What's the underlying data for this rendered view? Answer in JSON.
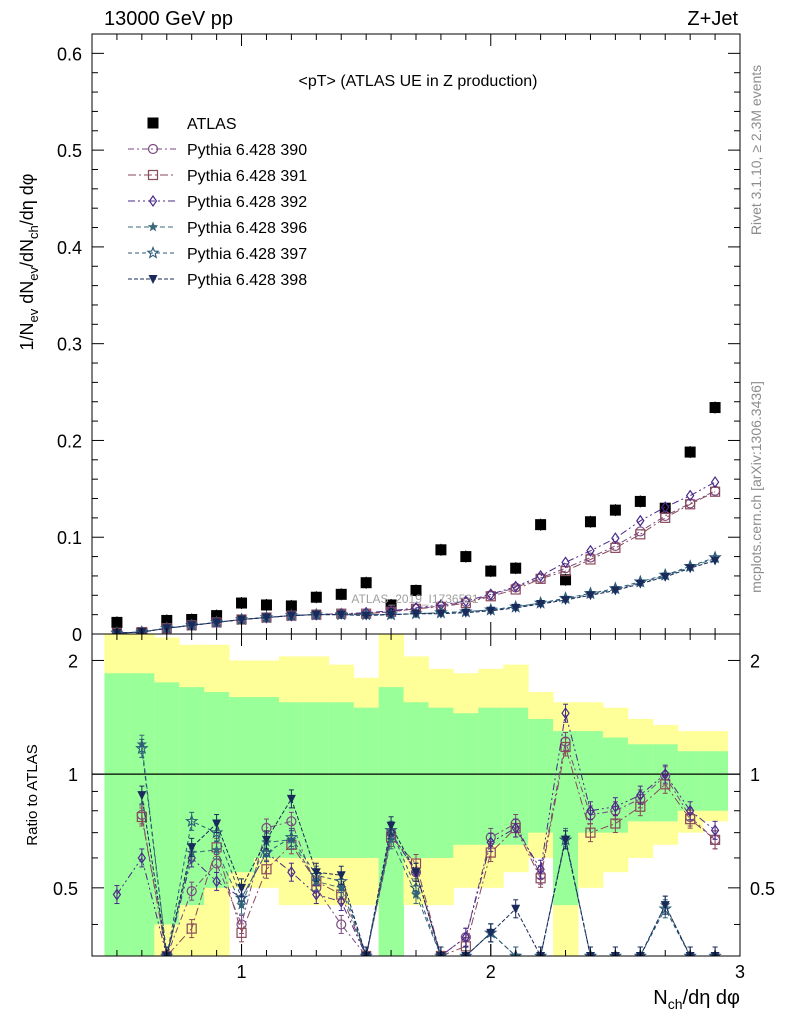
{
  "header": {
    "left": "13000 GeV pp",
    "right": "Z+Jet"
  },
  "side_text": {
    "rivet": "Rivet 3.1.10, ≥ 2.3M events",
    "mcplots": "mcplots.cern.ch [arXiv:1306.3436]"
  },
  "watermark": "ATLAS_2019_I1736531",
  "chart_data": [
    {
      "type": "scatter",
      "title": "<pT> (ATLAS UE in Z production)",
      "xlabel": "N_ch/dη dφ",
      "ylabel": "1/N_ev dN_ev/dN_ch/dη dφ",
      "xlim": [
        0.4,
        3.0
      ],
      "ylim": [
        0,
        0.62
      ],
      "y_ticks": [
        "0",
        "0.1",
        "0.2",
        "0.3",
        "0.4",
        "0.5",
        "0.6"
      ],
      "x_ticks": [
        "1",
        "2",
        "3"
      ],
      "legend_position": "top-left",
      "x": [
        0.5,
        0.6,
        0.7,
        0.8,
        0.9,
        1.0,
        1.1,
        1.2,
        1.3,
        1.4,
        1.5,
        1.6,
        1.7,
        1.8,
        1.9,
        2.0,
        2.1,
        2.2,
        2.3,
        2.4,
        2.5,
        2.6,
        2.7,
        2.8,
        2.9
      ],
      "series": [
        {
          "name": "ATLAS",
          "color": "#000000",
          "marker": "square-filled",
          "values": [
            0.012,
            0.001,
            0.014,
            0.015,
            0.019,
            0.032,
            0.03,
            0.029,
            0.038,
            0.041,
            0.053,
            0.03,
            0.045,
            0.087,
            0.08,
            0.065,
            0.068,
            0.113,
            0.056,
            0.116,
            0.128,
            0.137,
            0.13,
            0.188,
            0.234
          ]
        },
        {
          "name": "Pythia 6.428 390",
          "color": "#7a4a80",
          "marker": "circle-open",
          "values": [
            0.001,
            0.002,
            0.006,
            0.009,
            0.012,
            0.015,
            0.017,
            0.019,
            0.02,
            0.021,
            0.021,
            0.023,
            0.026,
            0.029,
            0.033,
            0.04,
            0.048,
            0.058,
            0.068,
            0.079,
            0.091,
            0.106,
            0.122,
            0.135,
            0.148
          ]
        },
        {
          "name": "Pythia 6.428 391",
          "color": "#8a4a5a",
          "marker": "square-open",
          "values": [
            0.001,
            0.002,
            0.006,
            0.009,
            0.012,
            0.015,
            0.017,
            0.019,
            0.02,
            0.021,
            0.021,
            0.023,
            0.026,
            0.028,
            0.032,
            0.039,
            0.046,
            0.057,
            0.065,
            0.077,
            0.089,
            0.103,
            0.12,
            0.134,
            0.147
          ]
        },
        {
          "name": "Pythia 6.428 392",
          "color": "#4a2a8a",
          "marker": "diamond-open",
          "values": [
            0.001,
            0.002,
            0.006,
            0.009,
            0.012,
            0.015,
            0.017,
            0.019,
            0.02,
            0.021,
            0.022,
            0.024,
            0.027,
            0.03,
            0.034,
            0.041,
            0.049,
            0.06,
            0.074,
            0.086,
            0.099,
            0.117,
            0.131,
            0.143,
            0.157
          ]
        },
        {
          "name": "Pythia 6.428 396",
          "color": "#3a6a7a",
          "marker": "star-filled",
          "values": [
            0.001,
            0.002,
            0.006,
            0.009,
            0.012,
            0.015,
            0.017,
            0.019,
            0.02,
            0.02,
            0.02,
            0.02,
            0.021,
            0.022,
            0.023,
            0.025,
            0.028,
            0.032,
            0.036,
            0.041,
            0.046,
            0.053,
            0.06,
            0.069,
            0.078
          ]
        },
        {
          "name": "Pythia 6.428 397",
          "color": "#2a5a7a",
          "marker": "star-open",
          "values": [
            0.001,
            0.002,
            0.006,
            0.009,
            0.012,
            0.015,
            0.017,
            0.019,
            0.02,
            0.02,
            0.02,
            0.02,
            0.021,
            0.022,
            0.023,
            0.025,
            0.028,
            0.032,
            0.037,
            0.042,
            0.047,
            0.054,
            0.061,
            0.07,
            0.079
          ]
        },
        {
          "name": "Pythia 6.428 398",
          "color": "#1a2a5a",
          "marker": "triangle-down-filled",
          "values": [
            0.001,
            0.002,
            0.006,
            0.009,
            0.012,
            0.015,
            0.017,
            0.019,
            0.02,
            0.02,
            0.019,
            0.02,
            0.021,
            0.021,
            0.022,
            0.024,
            0.027,
            0.031,
            0.035,
            0.04,
            0.045,
            0.052,
            0.059,
            0.068,
            0.076
          ]
        }
      ]
    },
    {
      "type": "line",
      "ylabel": "Ratio to ATLAS",
      "xlabel": "N_ch/dη dφ",
      "xlim": [
        0.4,
        3.0
      ],
      "ylim": [
        0.33,
        2.35
      ],
      "scale": "log",
      "y_ticks": [
        "0.5",
        "1",
        "2"
      ],
      "x_ticks": [
        "1",
        "2",
        "3"
      ],
      "reference_line": 1,
      "bands": {
        "x_edges": [
          0.45,
          0.55,
          0.65,
          0.75,
          0.85,
          0.95,
          1.05,
          1.15,
          1.25,
          1.35,
          1.45,
          1.55,
          1.65,
          1.75,
          1.85,
          1.95,
          2.05,
          2.15,
          2.25,
          2.35,
          2.45,
          2.55,
          2.65,
          2.75,
          2.85,
          2.95
        ],
        "yellow_high": [
          2.4,
          2.4,
          2.3,
          2.2,
          2.2,
          2.0,
          2.0,
          2.05,
          2.05,
          1.95,
          1.8,
          2.4,
          2.05,
          1.9,
          1.85,
          1.9,
          1.95,
          1.65,
          1.55,
          1.55,
          1.5,
          1.4,
          1.35,
          1.3,
          1.3
        ],
        "yellow_low": [
          0.33,
          0.33,
          0.33,
          0.33,
          0.33,
          0.5,
          0.5,
          0.45,
          0.45,
          0.45,
          0.45,
          0.33,
          0.45,
          0.45,
          0.5,
          0.5,
          0.55,
          0.6,
          0.33,
          0.5,
          0.55,
          0.6,
          0.65,
          0.7,
          0.75
        ],
        "green_high": [
          1.85,
          1.85,
          1.75,
          1.7,
          1.65,
          1.6,
          1.6,
          1.55,
          1.55,
          1.55,
          1.5,
          1.7,
          1.55,
          1.5,
          1.45,
          1.5,
          1.5,
          1.4,
          1.3,
          1.3,
          1.25,
          1.2,
          1.2,
          1.15,
          1.15
        ],
        "green_low": [
          0.33,
          0.33,
          0.4,
          0.45,
          0.5,
          0.55,
          0.6,
          0.6,
          0.6,
          0.6,
          0.6,
          0.33,
          0.6,
          0.6,
          0.65,
          0.65,
          0.65,
          0.7,
          0.45,
          0.7,
          0.7,
          0.75,
          0.75,
          0.8,
          0.8
        ]
      },
      "series": [
        {
          "name": "Pythia 6.428 390",
          "values": [
            null,
            0.78,
            0.33,
            0.49,
            0.58,
            0.4,
            0.72,
            0.75,
            0.5,
            0.4,
            0.33,
            0.7,
            0.55,
            0.33,
            0.37,
            0.68,
            0.74,
            0.54,
            1.22,
            0.78,
            0.8,
            0.86,
            0.99,
            0.77,
            0.67
          ]
        },
        {
          "name": "Pythia 6.428 391",
          "values": [
            null,
            0.77,
            0.33,
            0.39,
            0.64,
            0.38,
            0.56,
            0.65,
            0.52,
            0.48,
            0.33,
            0.68,
            0.58,
            0.33,
            0.35,
            0.62,
            0.72,
            0.53,
            1.18,
            0.7,
            0.74,
            0.82,
            0.94,
            0.76,
            0.67
          ]
        },
        {
          "name": "Pythia 6.428 392",
          "values": [
            0.48,
            0.6,
            0.33,
            0.6,
            0.52,
            0.47,
            0.62,
            0.55,
            0.48,
            0.46,
            0.33,
            0.7,
            0.55,
            0.33,
            0.37,
            0.66,
            0.72,
            0.56,
            1.45,
            0.8,
            0.82,
            0.88,
            1.0,
            0.8,
            0.71
          ]
        },
        {
          "name": "Pythia 6.428 396",
          "values": [
            null,
            1.2,
            0.33,
            0.62,
            0.63,
            0.45,
            0.66,
            0.67,
            0.52,
            0.5,
            0.33,
            0.67,
            0.48,
            0.33,
            0.33,
            0.38,
            0.33,
            0.33,
            0.68,
            0.33,
            0.33,
            0.33,
            0.45,
            0.33,
            0.33
          ]
        },
        {
          "name": "Pythia 6.428 397",
          "values": [
            null,
            1.17,
            0.33,
            0.75,
            0.7,
            0.47,
            0.62,
            0.68,
            0.54,
            0.52,
            0.33,
            0.71,
            0.5,
            0.33,
            0.33,
            0.38,
            0.33,
            0.33,
            0.67,
            0.33,
            0.33,
            0.33,
            0.44,
            0.33,
            0.33
          ]
        },
        {
          "name": "Pythia 6.428 398",
          "values": [
            null,
            0.88,
            0.33,
            0.64,
            0.74,
            0.5,
            0.67,
            0.86,
            0.55,
            0.54,
            0.33,
            0.73,
            0.55,
            0.33,
            0.33,
            0.38,
            0.44,
            0.33,
            0.67,
            0.33,
            0.33,
            0.33,
            0.45,
            0.33,
            0.33
          ]
        }
      ]
    }
  ]
}
